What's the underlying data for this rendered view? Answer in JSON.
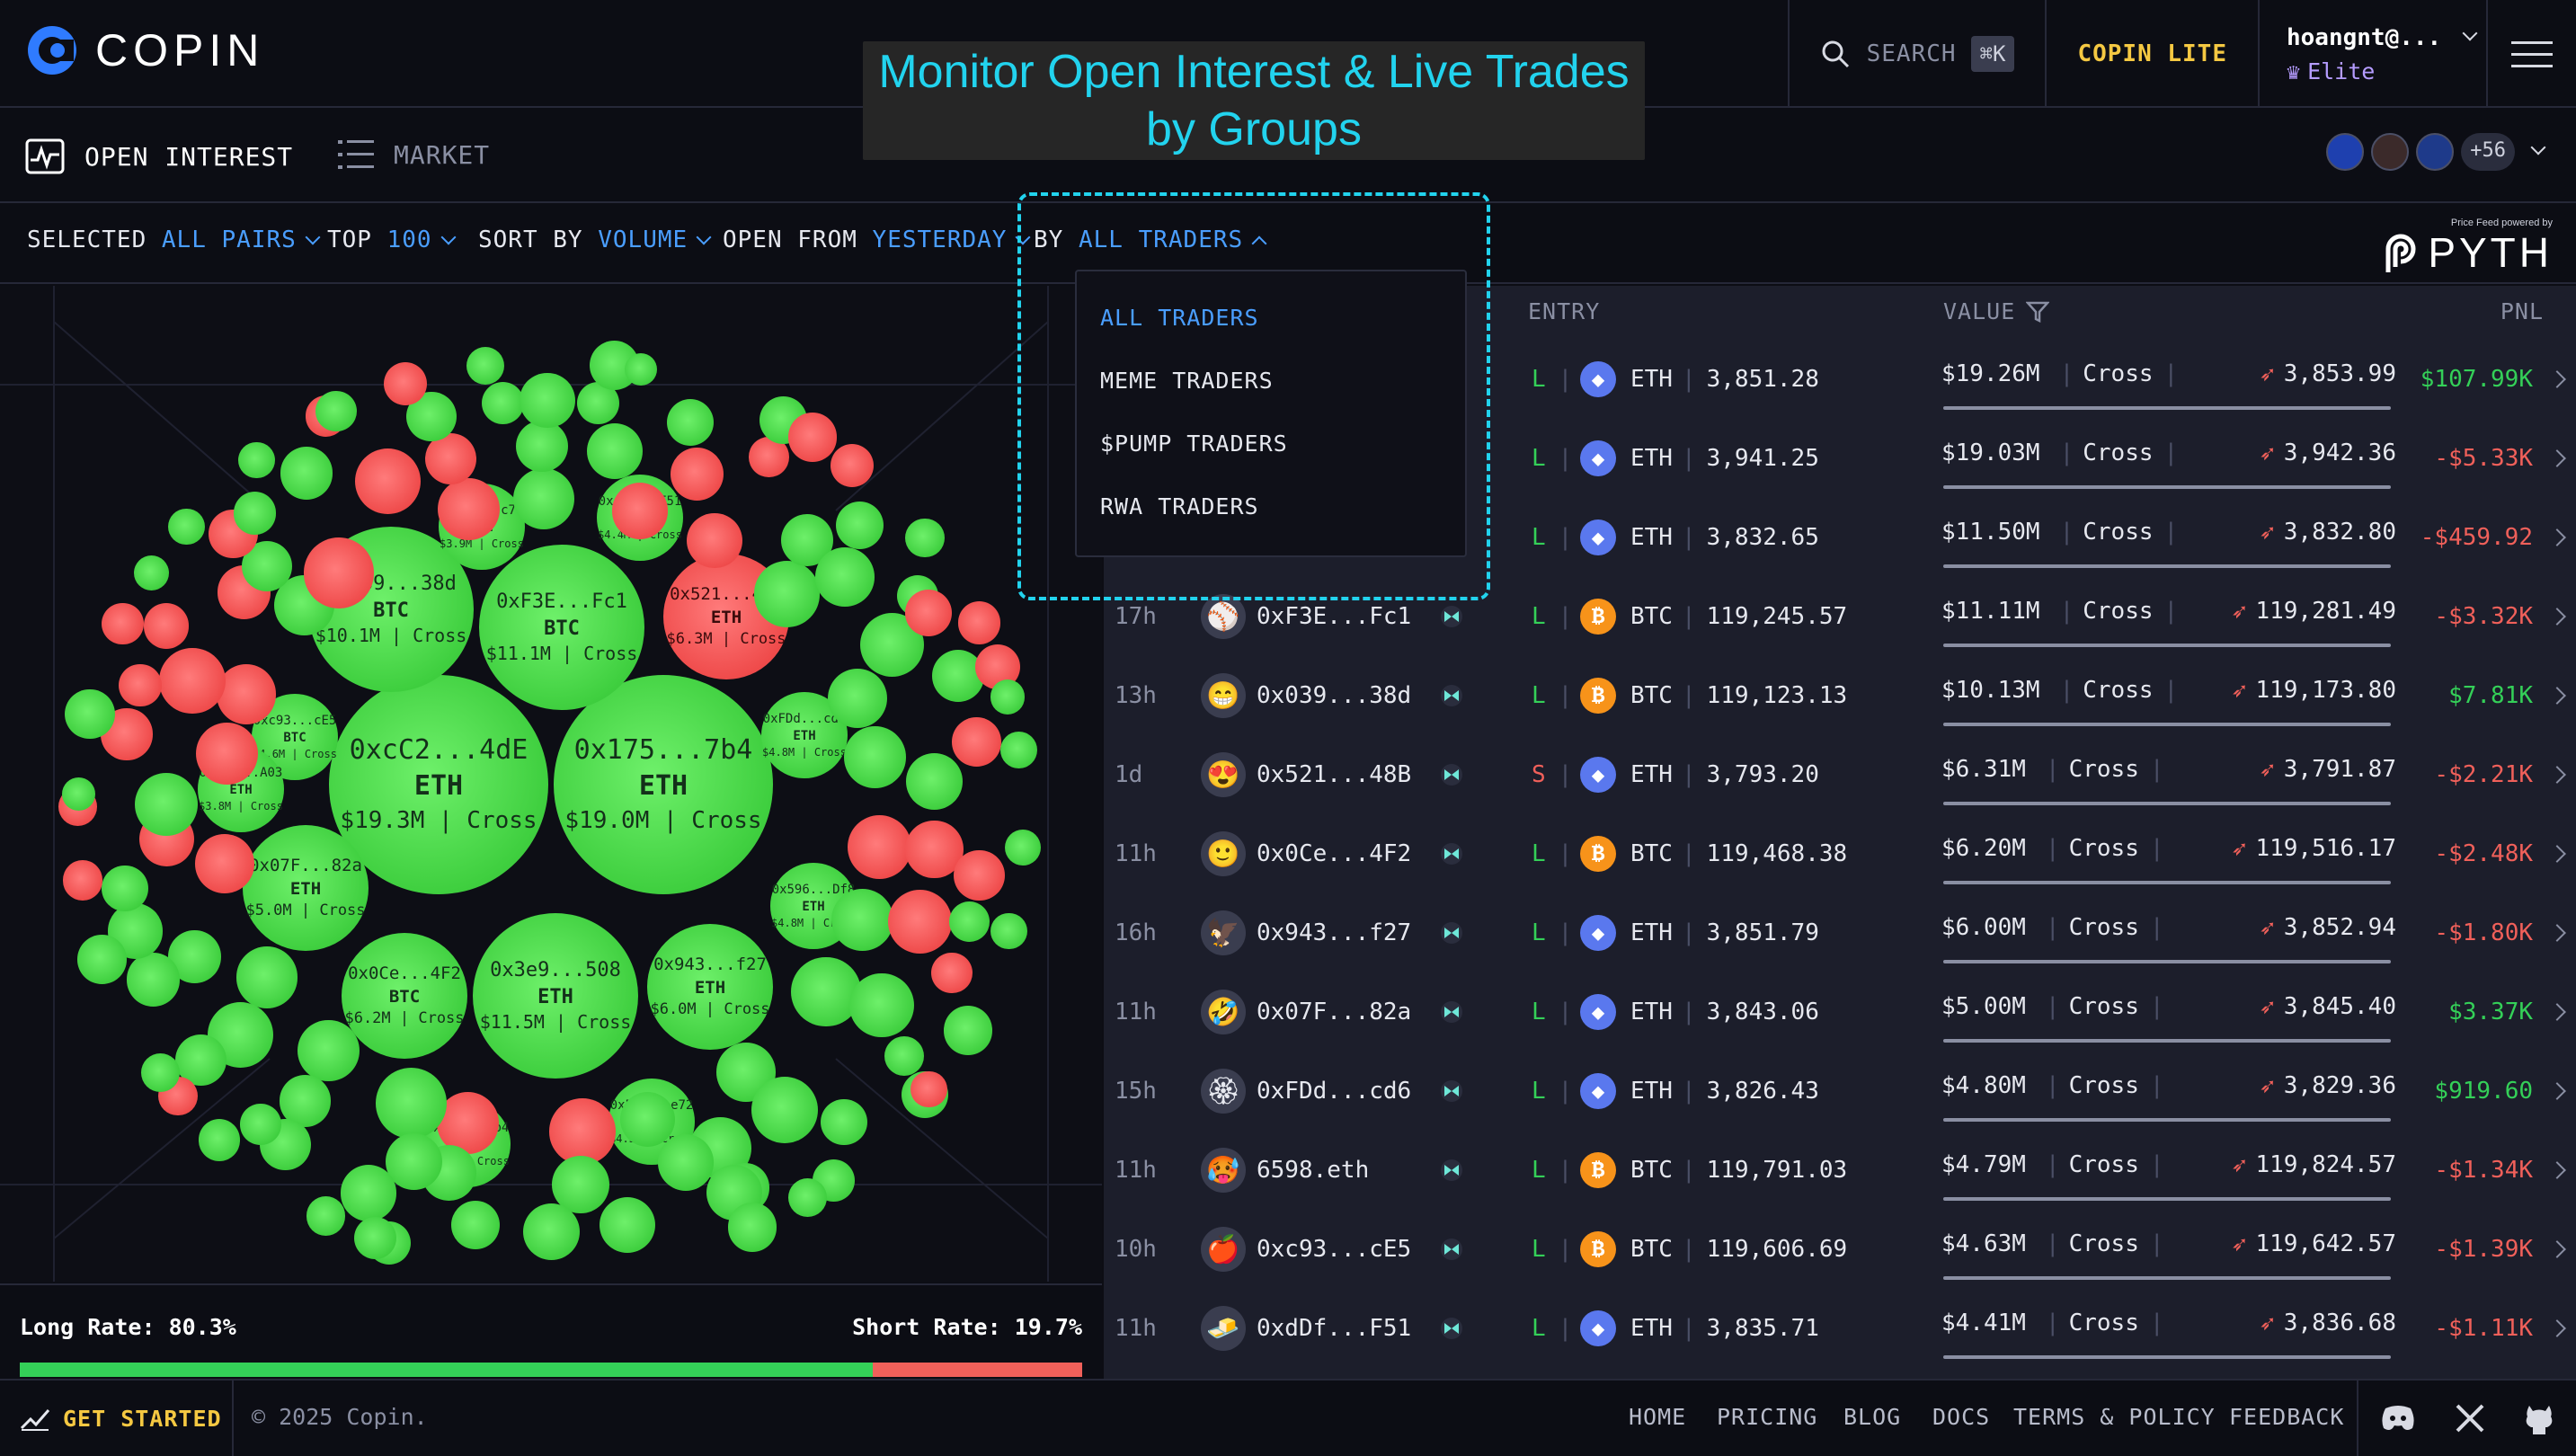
{
  "app": {
    "name": "COPIN"
  },
  "banner": {
    "line1": "Monitor Open Interest & Live Trades",
    "line2": "by Groups"
  },
  "topbar": {
    "search_label": "SEARCH",
    "search_kbd": "⌘K",
    "lite_label": "COPIN LITE",
    "user_name": "hoangnt@...",
    "user_tier": "Elite"
  },
  "nav": {
    "open_interest": "OPEN INTEREST",
    "market": "MARKET",
    "avatars_more": "+56"
  },
  "filters": {
    "selected_label": "SELECTED",
    "selected_value": "ALL PAIRS",
    "top_label": "TOP",
    "top_value": "100",
    "sort_label": "SORT BY",
    "sort_value": "VOLUME",
    "open_label": "OPEN FROM",
    "open_value": "YESTERDAY",
    "by_label": "BY",
    "by_value": "ALL TRADERS"
  },
  "pyth": {
    "powered": "Price Feed powered by",
    "name": "PYTH"
  },
  "dropdown": {
    "items": [
      "ALL TRADERS",
      "MEME TRADERS",
      "$PUMP TRADERS",
      "RWA TRADERS"
    ],
    "active_index": 0
  },
  "bubbles": [
    {
      "c": "g",
      "size": "xl",
      "addr": "0xcC2...4dE",
      "token": "ETH",
      "value": "$19.3M",
      "margin": "Cross"
    },
    {
      "c": "g",
      "size": "xl",
      "addr": "0x175...7b4",
      "token": "ETH",
      "value": "$19.0M",
      "margin": "Cross"
    },
    {
      "c": "g",
      "size": "lg",
      "addr": "0x039...38d",
      "token": "BTC",
      "value": "$10.1M",
      "margin": "Cross"
    },
    {
      "c": "g",
      "size": "lg",
      "addr": "0xF3E...Fc1",
      "token": "BTC",
      "value": "$11.1M",
      "margin": "Cross"
    },
    {
      "c": "g",
      "size": "lg",
      "addr": "0x3e9...508",
      "token": "ETH",
      "value": "$11.5M",
      "margin": "Cross"
    },
    {
      "c": "r",
      "size": "md",
      "addr": "0x521...48B",
      "token": "ETH",
      "value": "$6.3M",
      "margin": "Cross"
    },
    {
      "c": "g",
      "size": "md",
      "addr": "0x0Ce...4F2",
      "token": "BTC",
      "value": "$6.2M",
      "margin": "Cross"
    },
    {
      "c": "g",
      "size": "md",
      "addr": "0x943...f27",
      "token": "ETH",
      "value": "$6.0M",
      "margin": "Cross"
    },
    {
      "c": "g",
      "size": "md",
      "addr": "0x07F...82a",
      "token": "ETH",
      "value": "$5.0M",
      "margin": "Cross"
    },
    {
      "c": "g",
      "size": "sm",
      "addr": "0xFDd...cd6",
      "token": "ETH",
      "value": "$4.8M",
      "margin": "Cross"
    },
    {
      "c": "g",
      "size": "sm",
      "addr": "0x596...Df8",
      "token": "ETH",
      "value": "$4.8M",
      "margin": "Cross"
    },
    {
      "c": "g",
      "size": "sm",
      "addr": "0xdDf...F51",
      "token": "ETH",
      "value": "$4.4M",
      "margin": "Cross"
    },
    {
      "c": "g",
      "size": "sm",
      "addr": "0xc93...cE5",
      "token": "BTC",
      "value": "$4.6M",
      "margin": "Cross"
    },
    {
      "c": "g",
      "size": "sm",
      "addr": "0x35C...c76",
      "token": "ETH",
      "value": "$3.9M",
      "margin": "Cross"
    },
    {
      "c": "g",
      "size": "sm",
      "addr": "0xc85...A03",
      "token": "ETH",
      "value": "$3.8M",
      "margin": "Cross"
    },
    {
      "c": "g",
      "size": "sm",
      "addr": "0x175...7b4",
      "token": "SUI",
      "value": "$4.0M",
      "margin": "Cross"
    },
    {
      "c": "g",
      "size": "sm",
      "addr": "0x5a5...e72",
      "token": "BTC",
      "value": "$4.3M",
      "margin": "Cross"
    }
  ],
  "rates": {
    "long_label": "Long Rate:",
    "long_value": "80.3%",
    "short_label": "Short Rate:",
    "short_value": "19.7%",
    "long_fraction": 0.803
  },
  "table": {
    "headers": {
      "entry": "ENTRY",
      "value": "VALUE",
      "pnl": "PNL"
    },
    "rows": [
      {
        "time": "",
        "face": "",
        "trader": "",
        "side": "L",
        "token": "ETH",
        "entry": "3,851.28",
        "value": "$19.26M",
        "margin": "Cross",
        "liq": "3,853.99",
        "pnl": "$107.99K",
        "pnl_sign": "pos"
      },
      {
        "time": "",
        "face": "",
        "trader": "",
        "side": "L",
        "token": "ETH",
        "entry": "3,941.25",
        "value": "$19.03M",
        "margin": "Cross",
        "liq": "3,942.36",
        "pnl": "-$5.33K",
        "pnl_sign": "neg"
      },
      {
        "time": "",
        "face": "",
        "trader": "",
        "side": "L",
        "token": "ETH",
        "entry": "3,832.65",
        "value": "$11.50M",
        "margin": "Cross",
        "liq": "3,832.80",
        "pnl": "-$459.92",
        "pnl_sign": "neg"
      },
      {
        "time": "17h",
        "face": "⚾",
        "trader": "0xF3E...Fc1",
        "side": "L",
        "token": "BTC",
        "entry": "119,245.57",
        "value": "$11.11M",
        "margin": "Cross",
        "liq": "119,281.49",
        "pnl": "-$3.32K",
        "pnl_sign": "neg"
      },
      {
        "time": "13h",
        "face": "😁",
        "trader": "0x039...38d",
        "side": "L",
        "token": "BTC",
        "entry": "119,123.13",
        "value": "$10.13M",
        "margin": "Cross",
        "liq": "119,173.80",
        "pnl": "$7.81K",
        "pnl_sign": "pos"
      },
      {
        "time": "1d",
        "face": "😍",
        "trader": "0x521...48B",
        "side": "S",
        "token": "ETH",
        "entry": "3,793.20",
        "value": "$6.31M",
        "margin": "Cross",
        "liq": "3,791.87",
        "pnl": "-$2.21K",
        "pnl_sign": "neg"
      },
      {
        "time": "11h",
        "face": "🙂",
        "trader": "0x0Ce...4F2",
        "side": "L",
        "token": "BTC",
        "entry": "119,468.38",
        "value": "$6.20M",
        "margin": "Cross",
        "liq": "119,516.17",
        "pnl": "-$2.48K",
        "pnl_sign": "neg"
      },
      {
        "time": "16h",
        "face": "🦅",
        "trader": "0x943...f27",
        "side": "L",
        "token": "ETH",
        "entry": "3,851.79",
        "value": "$6.00M",
        "margin": "Cross",
        "liq": "3,852.94",
        "pnl": "-$1.80K",
        "pnl_sign": "neg"
      },
      {
        "time": "11h",
        "face": "🤣",
        "trader": "0x07F...82a",
        "side": "L",
        "token": "ETH",
        "entry": "3,843.06",
        "value": "$5.00M",
        "margin": "Cross",
        "liq": "3,845.40",
        "pnl": "$3.37K",
        "pnl_sign": "pos"
      },
      {
        "time": "15h",
        "face": "🏵",
        "trader": "0xFDd...cd6",
        "side": "L",
        "token": "ETH",
        "entry": "3,826.43",
        "value": "$4.80M",
        "margin": "Cross",
        "liq": "3,829.36",
        "pnl": "$919.60",
        "pnl_sign": "pos"
      },
      {
        "time": "11h",
        "face": "🥵",
        "trader": "6598.eth",
        "side": "L",
        "token": "BTC",
        "entry": "119,791.03",
        "value": "$4.79M",
        "margin": "Cross",
        "liq": "119,824.57",
        "pnl": "-$1.34K",
        "pnl_sign": "neg"
      },
      {
        "time": "10h",
        "face": "🍎",
        "trader": "0xc93...cE5",
        "side": "L",
        "token": "BTC",
        "entry": "119,606.69",
        "value": "$4.63M",
        "margin": "Cross",
        "liq": "119,642.57",
        "pnl": "-$1.39K",
        "pnl_sign": "neg"
      },
      {
        "time": "11h",
        "face": "🧈",
        "trader": "0xdDf...F51",
        "side": "L",
        "token": "ETH",
        "entry": "3,835.71",
        "value": "$4.41M",
        "margin": "Cross",
        "liq": "3,836.68",
        "pnl": "-$1.11K",
        "pnl_sign": "neg"
      }
    ]
  },
  "footer": {
    "cta": "GET STARTED",
    "copyright": "© 2025 Copin.",
    "links": [
      "HOME",
      "PRICING",
      "BLOG",
      "DOCS",
      "TERMS & POLICY",
      "FEEDBACK"
    ]
  },
  "colors": {
    "accent": "#4a9eff",
    "cyan": "#22d3ee",
    "long": "#34d058",
    "short": "#f0605a",
    "lite": "#f5c842"
  }
}
